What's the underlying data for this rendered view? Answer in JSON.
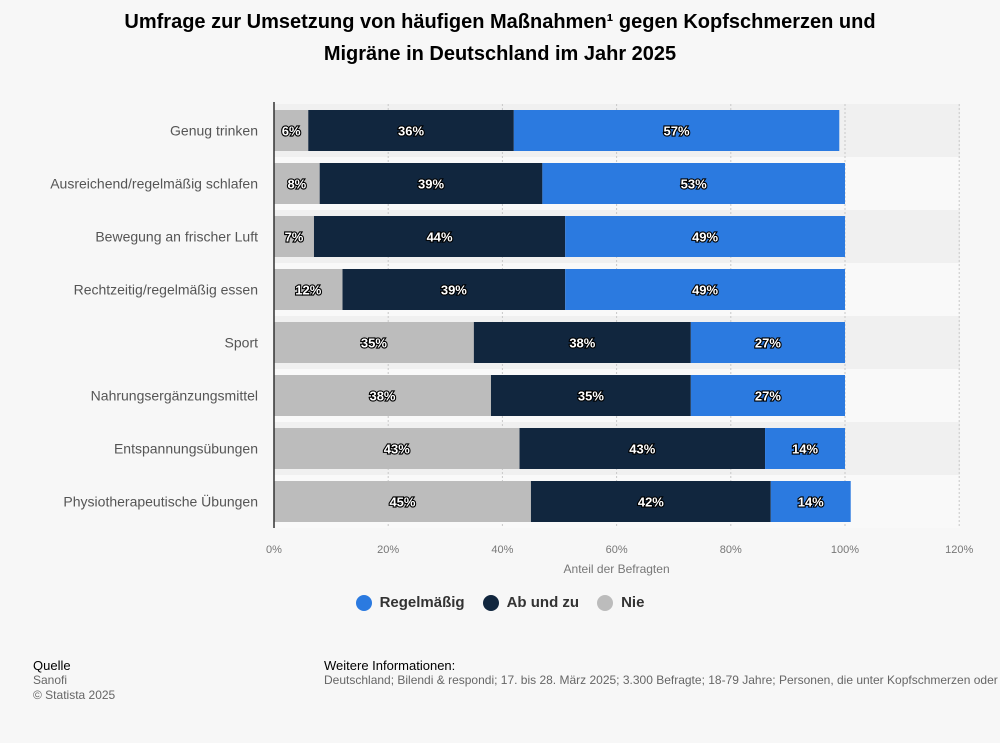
{
  "title_line1": "Umfrage zur Umsetzung von häufigen Maßnahmen¹ gegen Kopfschmerzen und",
  "title_line2": "Migräne in Deutschland im Jahr 2025",
  "chart_data": {
    "type": "bar",
    "orientation": "horizontal",
    "stacked": true,
    "title": "Umfrage zur Umsetzung von häufigen Maßnahmen¹ gegen Kopfschmerzen und Migräne in Deutschland im Jahr 2025",
    "categories": [
      "Genug trinken",
      "Ausreichend/regelmäßig schlafen",
      "Bewegung an frischer Luft",
      "Rechtzeitig/regelmäßig essen",
      "Sport",
      "Nahrungsergänzungsmittel",
      "Entspannungsübungen",
      "Physiotherapeutische Übungen"
    ],
    "series": [
      {
        "name": "Nie",
        "color": "#bcbcbc",
        "values": [
          6,
          8,
          7,
          12,
          35,
          38,
          43,
          45
        ]
      },
      {
        "name": "Ab und zu",
        "color": "#11263e",
        "values": [
          36,
          39,
          44,
          39,
          38,
          35,
          43,
          42
        ]
      },
      {
        "name": "Regelmäßig",
        "color": "#2b7ae0",
        "values": [
          57,
          53,
          49,
          49,
          27,
          27,
          14,
          14
        ]
      }
    ],
    "xlabel": "Anteil der Befragten",
    "ylabel": "",
    "xlim": [
      0,
      120
    ],
    "ticks": [
      0,
      20,
      40,
      60,
      80,
      100,
      120
    ],
    "tick_labels": [
      "0%",
      "20%",
      "40%",
      "60%",
      "80%",
      "100%",
      "120%"
    ],
    "grid": true,
    "legend_position": "bottom"
  },
  "legend": [
    {
      "label": "Regelmäßig",
      "color": "#2b7ae0"
    },
    {
      "label": "Ab und zu",
      "color": "#11263e"
    },
    {
      "label": "Nie",
      "color": "#bcbcbc"
    }
  ],
  "source": {
    "heading": "Quelle",
    "line1": "Sanofi",
    "line2": "© Statista 2025"
  },
  "info": {
    "heading": "Weitere Informationen:",
    "text": "Deutschland; Bilendi & respondi; 17. bis 28. März 2025; 3.300 Befragte; 18-79 Jahre; Personen, die unter Kopfschmerzen oder"
  }
}
